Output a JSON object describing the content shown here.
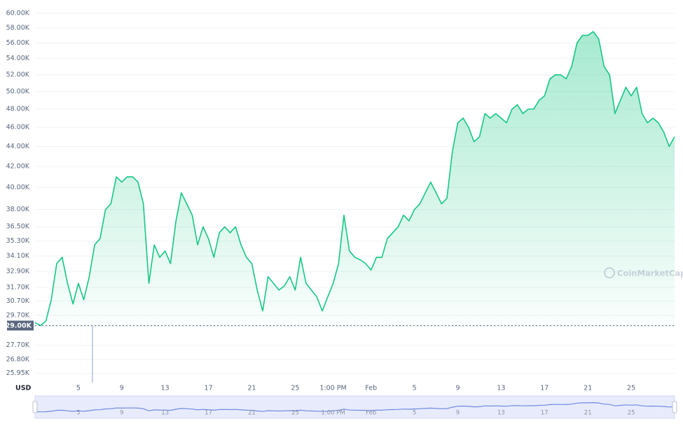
{
  "chart_data": {
    "type": "line",
    "currency": "USD",
    "watermark": "CoinMarketCap",
    "color": "#16c784",
    "log_scale": true,
    "grid": true,
    "xlim": [
      0,
      59
    ],
    "ylim": [
      25600,
      60000
    ],
    "xticks": [
      {
        "value": 4,
        "label": "5"
      },
      {
        "value": 8,
        "label": "9"
      },
      {
        "value": 12,
        "label": "13"
      },
      {
        "value": 16,
        "label": "17"
      },
      {
        "value": 20,
        "label": "21"
      },
      {
        "value": 24,
        "label": "25"
      },
      {
        "value": 27.5,
        "label": "1:00 PM"
      },
      {
        "value": 31,
        "label": "Feb"
      },
      {
        "value": 35,
        "label": "5"
      },
      {
        "value": 39,
        "label": "9"
      },
      {
        "value": 43,
        "label": "13"
      },
      {
        "value": 47,
        "label": "17"
      },
      {
        "value": 51,
        "label": "21"
      },
      {
        "value": 55,
        "label": "25"
      }
    ],
    "yticks": [
      {
        "value": 60000,
        "label": "60.00K"
      },
      {
        "value": 58000,
        "label": "58.00K"
      },
      {
        "value": 56000,
        "label": "56.00K"
      },
      {
        "value": 54000,
        "label": "54.00K"
      },
      {
        "value": 52000,
        "label": "52.00K"
      },
      {
        "value": 50000,
        "label": "50.00K"
      },
      {
        "value": 48000,
        "label": "48.00K"
      },
      {
        "value": 46000,
        "label": "46.00K"
      },
      {
        "value": 44000,
        "label": "44.00K"
      },
      {
        "value": 42000,
        "label": "42.00K"
      },
      {
        "value": 40000,
        "label": "40.00K"
      },
      {
        "value": 38000,
        "label": "38.00K"
      },
      {
        "value": 36500,
        "label": "36.50K"
      },
      {
        "value": 35300,
        "label": "35.30K"
      },
      {
        "value": 34100,
        "label": "34.10K"
      },
      {
        "value": 32900,
        "label": "32.90K"
      },
      {
        "value": 31700,
        "label": "31.70K"
      },
      {
        "value": 30700,
        "label": "30.70K"
      },
      {
        "value": 29700,
        "label": "29.70K"
      },
      {
        "value": 27700,
        "label": "27.70K"
      },
      {
        "value": 26800,
        "label": "26.80K"
      },
      {
        "value": 25950,
        "label": "25.95K"
      }
    ],
    "price_marker": {
      "value": 29000,
      "label": "29.00K"
    },
    "x": [
      0,
      0.5,
      1,
      1.5,
      2,
      2.5,
      3,
      3.5,
      4,
      4.5,
      5,
      5.5,
      6,
      6.5,
      7,
      7.5,
      8,
      8.5,
      9,
      9.5,
      10,
      10.5,
      11,
      11.5,
      12,
      12.5,
      13,
      13.5,
      14,
      14.5,
      15,
      15.5,
      16,
      16.5,
      17,
      17.5,
      18,
      18.5,
      19,
      19.5,
      20,
      20.5,
      21,
      21.5,
      22,
      22.5,
      23,
      23.5,
      24,
      24.5,
      25,
      25.5,
      26,
      26.5,
      27,
      27.5,
      28,
      28.5,
      29,
      29.5,
      30,
      30.5,
      31,
      31.5,
      32,
      32.5,
      33,
      33.5,
      34,
      34.5,
      35,
      35.5,
      36,
      36.5,
      37,
      37.5,
      38,
      38.5,
      39,
      39.5,
      40,
      40.5,
      41,
      41.5,
      42,
      42.5,
      43,
      43.5,
      44,
      44.5,
      45,
      45.5,
      46,
      46.5,
      47,
      47.5,
      48,
      48.5,
      49,
      49.5,
      50,
      50.5,
      51,
      51.5,
      52,
      52.5,
      53,
      53.5,
      54,
      54.5,
      55,
      55.5,
      56,
      56.5,
      57,
      57.5,
      58,
      58.5,
      59
    ],
    "values": [
      29200,
      29000,
      29300,
      30800,
      33500,
      34000,
      32000,
      30500,
      32000,
      30800,
      32500,
      35000,
      35500,
      38000,
      38500,
      41000,
      40500,
      41000,
      41000,
      40500,
      38500,
      32000,
      35000,
      34000,
      34500,
      33500,
      37000,
      39500,
      38500,
      37500,
      35000,
      36500,
      35500,
      34000,
      36000,
      36500,
      36000,
      36500,
      35000,
      34000,
      33500,
      31500,
      30000,
      32500,
      32000,
      31500,
      31800,
      32500,
      31500,
      34000,
      32000,
      31500,
      31000,
      30000,
      31000,
      32000,
      33500,
      37500,
      34500,
      34000,
      33800,
      33500,
      33000,
      34000,
      34000,
      35500,
      36000,
      36500,
      37500,
      37000,
      38000,
      38500,
      39500,
      40500,
      39500,
      38500,
      39000,
      43500,
      46500,
      47000,
      46000,
      44500,
      45000,
      47500,
      47000,
      47500,
      47000,
      46500,
      48000,
      48500,
      47500,
      48000,
      48000,
      49000,
      49500,
      51500,
      52000,
      52000,
      51500,
      53000,
      56000,
      57000,
      57000,
      57500,
      56500,
      53000,
      52000,
      47500,
      49000,
      50500,
      49500,
      50500,
      47500,
      46500,
      47000,
      46500,
      45500,
      44000,
      45000
    ]
  }
}
